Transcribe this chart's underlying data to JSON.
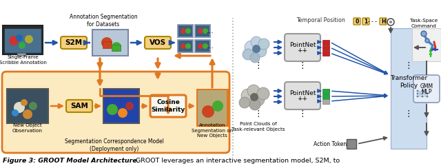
{
  "bg_color": "#ffffff",
  "fig_width": 6.4,
  "fig_height": 2.44,
  "dpi": 100,
  "colors": {
    "orange": "#e07820",
    "blue": "#2255aa",
    "yellow_box": "#f5d080",
    "light_orange_bg": "#fceac0",
    "light_blue_panel": "#ccddf0",
    "red_block": "#cc2222",
    "green_block": "#22aa44",
    "gray_block": "#aaaaaa",
    "dark_bg": "#1a3a5c",
    "mid_gray": "#cccccc",
    "light_gray_box": "#e0e0e0",
    "dashed": "#aaaaaa"
  },
  "caption_fig": "Figure 3:",
  "caption_bold": " GROOT Model Architecture.",
  "caption_rest": " GROOT leverages an interactive segmentation model, S2M, to"
}
